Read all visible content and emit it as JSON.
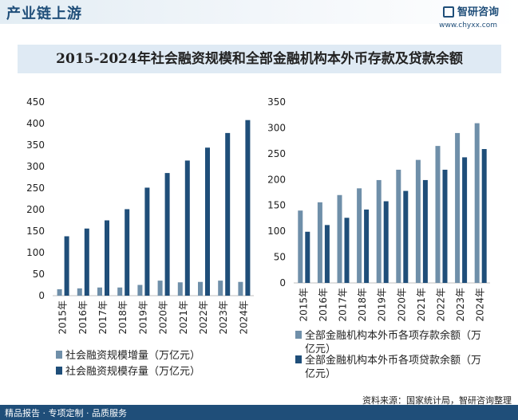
{
  "header": {
    "title": "产业链上游",
    "logo_text": "智研咨询",
    "url": "www.chyxx.com"
  },
  "title": "2015-2024年社会融资规模和全部金融机构本外币存款及贷款余额",
  "footer": {
    "source": "资料来源：国家统计局，智研咨询整理",
    "services": "精品报告 · 专项定制 · 品质服务"
  },
  "chart_data": [
    {
      "type": "bar",
      "categories": [
        "2015年",
        "2016年",
        "2017年",
        "2018年",
        "2019年",
        "2020年",
        "2021年",
        "2022年",
        "2023年",
        "2024年"
      ],
      "series": [
        {
          "name": "社会融资规模增量（万亿元）",
          "color": "#6f8fa9",
          "values": [
            15,
            17,
            19,
            19,
            25,
            35,
            31,
            32,
            35,
            32
          ]
        },
        {
          "name": "社会融资规模存量（万亿元）",
          "color": "#1f4e79",
          "values": [
            138,
            156,
            175,
            201,
            251,
            285,
            314,
            344,
            378,
            408
          ]
        }
      ],
      "ylim": [
        0,
        450
      ],
      "yticks": [
        0,
        50,
        100,
        150,
        200,
        250,
        300,
        350,
        400,
        450
      ],
      "legend": "bottom"
    },
    {
      "type": "bar",
      "categories": [
        "2015年",
        "2016年",
        "2017年",
        "2018年",
        "2019年",
        "2020年",
        "2021年",
        "2022年",
        "2023年",
        "2024年"
      ],
      "series": [
        {
          "name": "全部金融机构本外币各项存款余额（万亿元）",
          "color": "#6f8fa9",
          "values": [
            140,
            156,
            170,
            183,
            199,
            219,
            238,
            265,
            290,
            309
          ]
        },
        {
          "name": "全部金融机构本外币各项贷款余额（万亿元）",
          "color": "#1f4e79",
          "values": [
            99,
            112,
            126,
            142,
            158,
            178,
            199,
            219,
            243,
            259
          ]
        }
      ],
      "ylim": [
        0,
        350
      ],
      "yticks": [
        0,
        50,
        100,
        150,
        200,
        250,
        300,
        350
      ],
      "legend": "bottom"
    }
  ]
}
